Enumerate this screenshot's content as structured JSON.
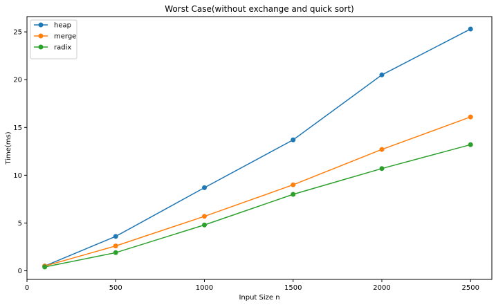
{
  "chart_data": {
    "type": "line",
    "title": "Worst Case(without exchange and quick sort)",
    "xlabel": "Input Size n",
    "ylabel": "Time(ms)",
    "x": [
      100,
      500,
      1000,
      1500,
      2000,
      2500
    ],
    "xlim": [
      0,
      2620
    ],
    "ylim": [
      -0.9,
      26.6
    ],
    "xticks": [
      0,
      500,
      1000,
      1500,
      2000,
      2500
    ],
    "yticks": [
      0,
      5,
      10,
      15,
      20,
      25
    ],
    "grid": false,
    "legend_position": "top-left",
    "series": [
      {
        "name": "heap",
        "color": "#1f77b4",
        "values": [
          0.5,
          3.6,
          8.7,
          13.7,
          20.5,
          25.3
        ]
      },
      {
        "name": "merge",
        "color": "#ff7f0e",
        "values": [
          0.5,
          2.6,
          5.7,
          9.0,
          12.7,
          16.1
        ]
      },
      {
        "name": "radix",
        "color": "#2ca02c",
        "values": [
          0.4,
          1.9,
          4.8,
          8.0,
          10.7,
          13.2
        ]
      }
    ]
  }
}
